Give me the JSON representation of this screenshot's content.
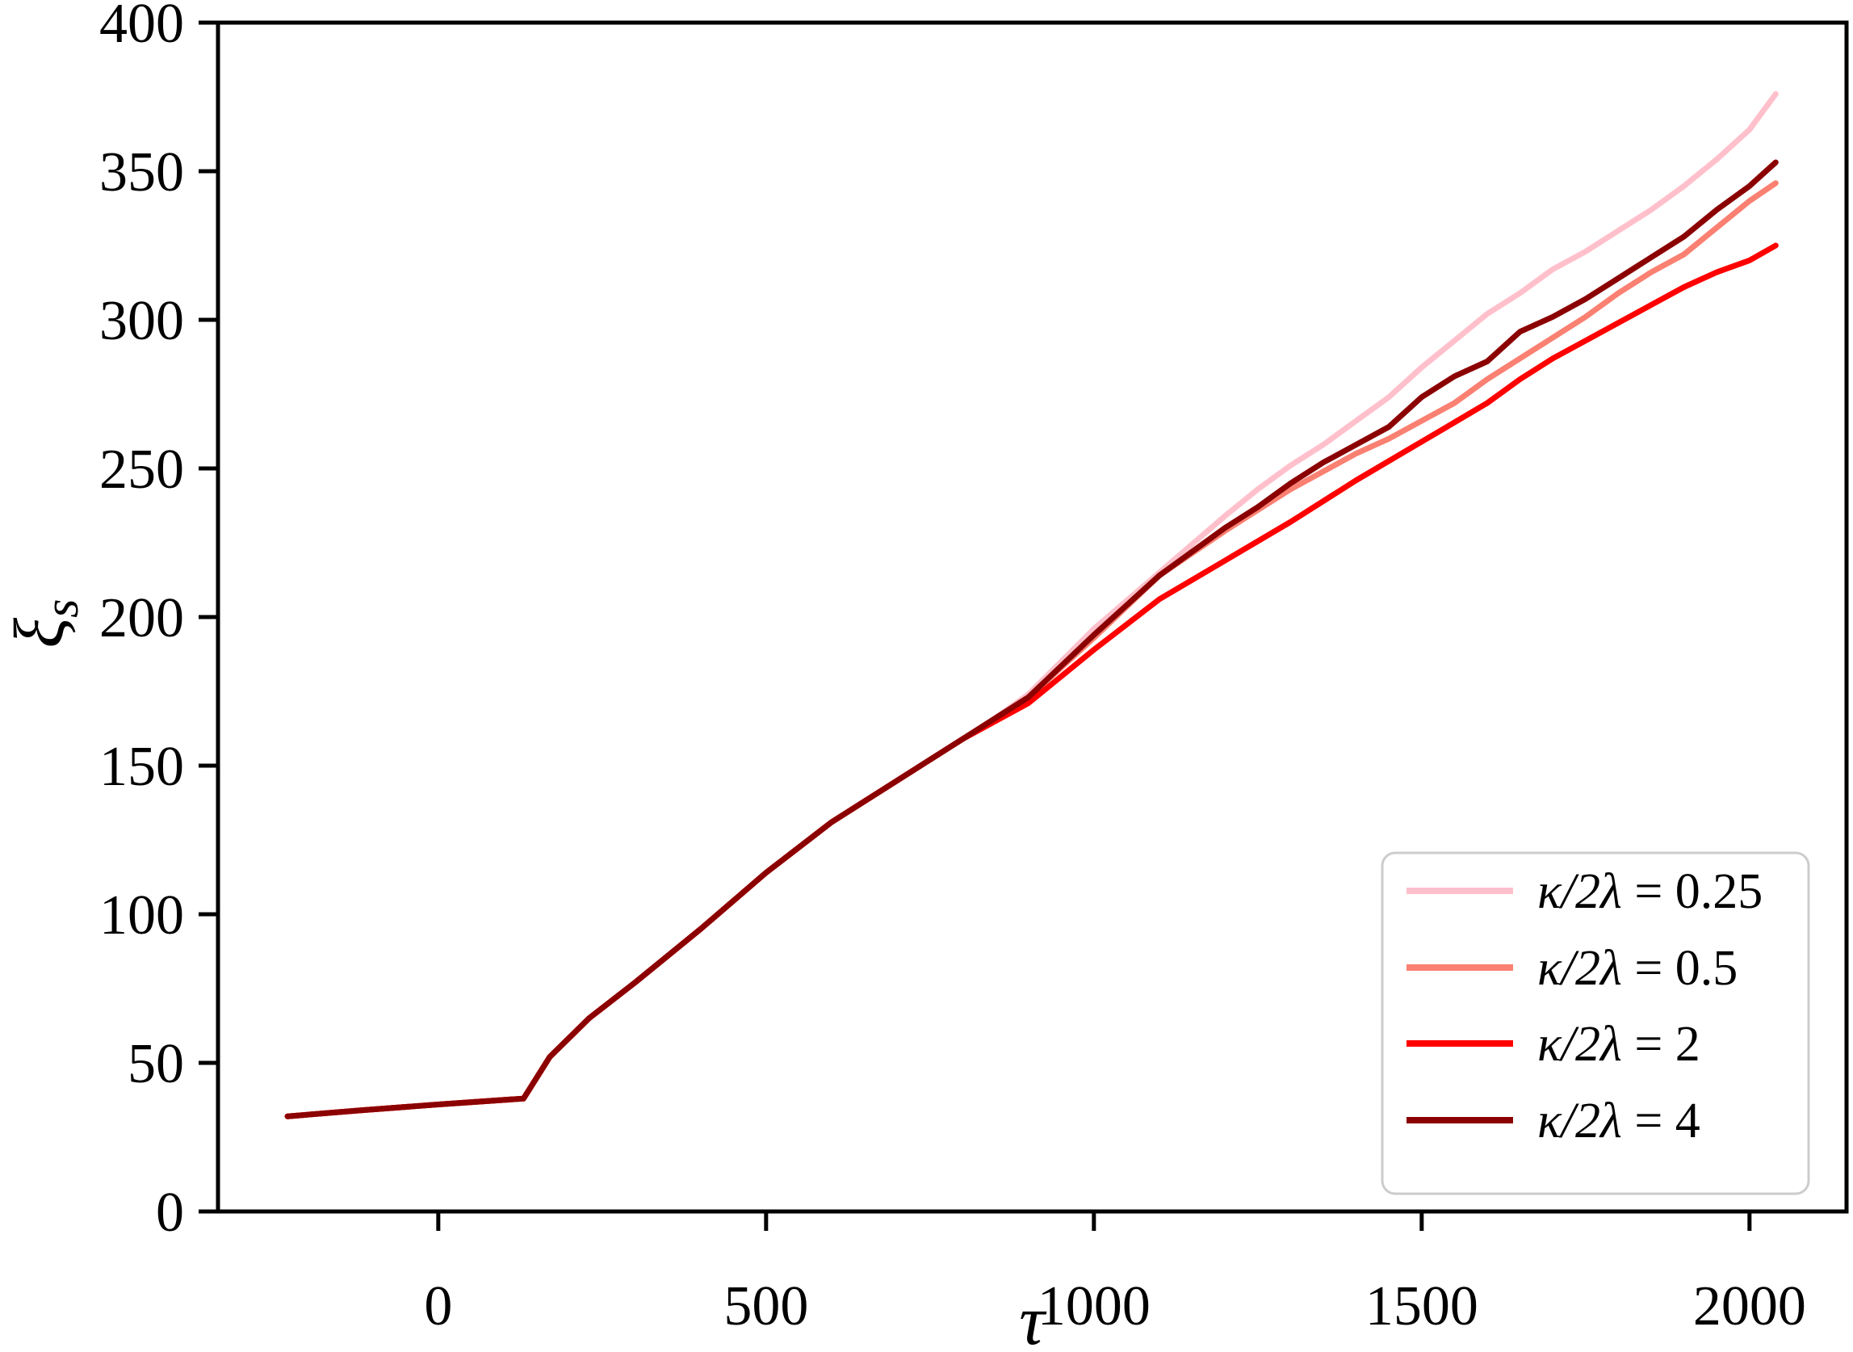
{
  "figure": {
    "xlabel": "τ",
    "ylabel_base": "ξ",
    "ylabel_sub": "s",
    "background": "#ffffff",
    "axis_color": "#000000",
    "legend_edge_color": "#cccccc",
    "legend_face_color": "#ffffff"
  },
  "chart_data": {
    "type": "line",
    "title": "",
    "xlabel": "τ",
    "ylabel": "ξ_s",
    "xlim": [
      -336,
      2148
    ],
    "ylim": [
      0,
      400
    ],
    "x_ticks": [
      0,
      500,
      1000,
      1500,
      2000
    ],
    "y_ticks": [
      0,
      50,
      100,
      150,
      200,
      250,
      300,
      350,
      400
    ],
    "grid": false,
    "legend_position": "lower right",
    "series": [
      {
        "name": "κ/2λ = 0.25",
        "math": "κ/2λ",
        "value": "0.25",
        "color": "#ffc0cb",
        "points": [
          [
            -230,
            32
          ],
          [
            -120,
            34
          ],
          [
            0,
            36
          ],
          [
            130,
            38
          ],
          [
            170,
            52
          ],
          [
            230,
            65
          ],
          [
            300,
            77
          ],
          [
            400,
            95
          ],
          [
            500,
            114
          ],
          [
            600,
            131
          ],
          [
            700,
            145
          ],
          [
            800,
            159
          ],
          [
            850,
            166
          ],
          [
            900,
            174
          ],
          [
            1000,
            196
          ],
          [
            1100,
            215
          ],
          [
            1200,
            234
          ],
          [
            1250,
            243
          ],
          [
            1300,
            251
          ],
          [
            1350,
            258
          ],
          [
            1400,
            266
          ],
          [
            1450,
            274
          ],
          [
            1500,
            284
          ],
          [
            1550,
            293
          ],
          [
            1600,
            302
          ],
          [
            1650,
            309
          ],
          [
            1700,
            317
          ],
          [
            1750,
            323
          ],
          [
            1800,
            330
          ],
          [
            1850,
            337
          ],
          [
            1900,
            345
          ],
          [
            1950,
            354
          ],
          [
            2000,
            364
          ],
          [
            2040,
            376
          ]
        ]
      },
      {
        "name": "κ/2λ = 0.5",
        "math": "κ/2λ",
        "value": "0.5",
        "color": "#fa8072",
        "points": [
          [
            -230,
            32
          ],
          [
            -120,
            34
          ],
          [
            0,
            36
          ],
          [
            130,
            38
          ],
          [
            170,
            52
          ],
          [
            230,
            65
          ],
          [
            300,
            77
          ],
          [
            400,
            95
          ],
          [
            500,
            114
          ],
          [
            600,
            131
          ],
          [
            700,
            145
          ],
          [
            800,
            159
          ],
          [
            850,
            166
          ],
          [
            900,
            173
          ],
          [
            1000,
            193
          ],
          [
            1100,
            214
          ],
          [
            1200,
            229
          ],
          [
            1250,
            236
          ],
          [
            1300,
            243
          ],
          [
            1350,
            249
          ],
          [
            1400,
            255
          ],
          [
            1450,
            260
          ],
          [
            1500,
            266
          ],
          [
            1550,
            272
          ],
          [
            1600,
            280
          ],
          [
            1650,
            287
          ],
          [
            1700,
            294
          ],
          [
            1750,
            301
          ],
          [
            1800,
            309
          ],
          [
            1850,
            316
          ],
          [
            1900,
            322
          ],
          [
            1950,
            331
          ],
          [
            2000,
            340
          ],
          [
            2040,
            346
          ]
        ]
      },
      {
        "name": "κ/2λ = 2",
        "math": "κ/2λ",
        "value": "2",
        "color": "#ff0000",
        "points": [
          [
            -230,
            32
          ],
          [
            -120,
            34
          ],
          [
            0,
            36
          ],
          [
            130,
            38
          ],
          [
            170,
            52
          ],
          [
            230,
            65
          ],
          [
            300,
            77
          ],
          [
            400,
            95
          ],
          [
            500,
            114
          ],
          [
            600,
            131
          ],
          [
            700,
            145
          ],
          [
            800,
            159
          ],
          [
            850,
            165
          ],
          [
            900,
            171
          ],
          [
            1000,
            189
          ],
          [
            1100,
            206
          ],
          [
            1200,
            219
          ],
          [
            1300,
            232
          ],
          [
            1400,
            246
          ],
          [
            1500,
            259
          ],
          [
            1600,
            272
          ],
          [
            1650,
            280
          ],
          [
            1700,
            287
          ],
          [
            1750,
            293
          ],
          [
            1800,
            299
          ],
          [
            1850,
            305
          ],
          [
            1900,
            311
          ],
          [
            1950,
            316
          ],
          [
            2000,
            320
          ],
          [
            2040,
            325
          ]
        ]
      },
      {
        "name": "κ/2λ = 4",
        "math": "κ/2λ",
        "value": "4",
        "color": "#8b0000",
        "points": [
          [
            -230,
            32
          ],
          [
            -120,
            34
          ],
          [
            0,
            36
          ],
          [
            130,
            38
          ],
          [
            170,
            52
          ],
          [
            230,
            65
          ],
          [
            300,
            77
          ],
          [
            400,
            95
          ],
          [
            500,
            114
          ],
          [
            600,
            131
          ],
          [
            700,
            145
          ],
          [
            800,
            159
          ],
          [
            850,
            166
          ],
          [
            900,
            173
          ],
          [
            1000,
            194
          ],
          [
            1100,
            214
          ],
          [
            1200,
            230
          ],
          [
            1250,
            237
          ],
          [
            1300,
            245
          ],
          [
            1350,
            252
          ],
          [
            1400,
            258
          ],
          [
            1450,
            264
          ],
          [
            1500,
            274
          ],
          [
            1550,
            281
          ],
          [
            1600,
            286
          ],
          [
            1650,
            296
          ],
          [
            1700,
            301
          ],
          [
            1750,
            307
          ],
          [
            1800,
            314
          ],
          [
            1850,
            321
          ],
          [
            1900,
            328
          ],
          [
            1950,
            337
          ],
          [
            2000,
            345
          ],
          [
            2040,
            353
          ]
        ]
      }
    ]
  }
}
